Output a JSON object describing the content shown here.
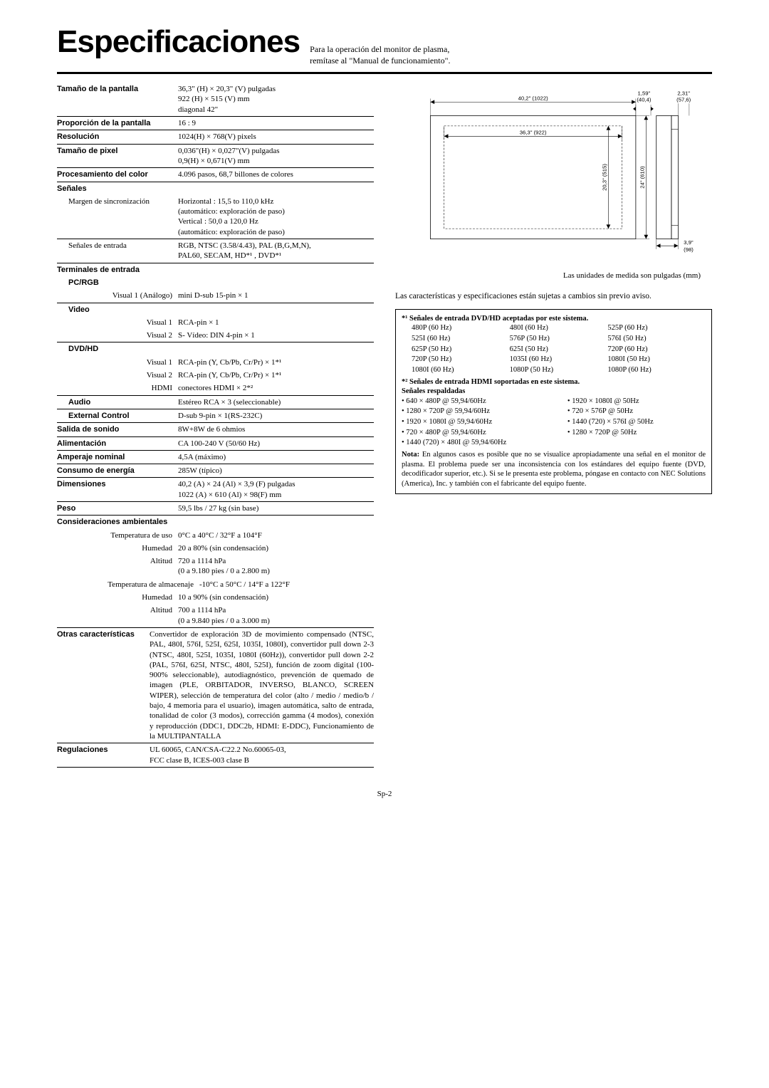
{
  "header": {
    "title": "Especificaciones",
    "subtitle_line1": "Para la operación del monitor de plasma,",
    "subtitle_line2": "remítase al \"Manual de funcionamiento\"."
  },
  "specs": {
    "screen_size": {
      "label": "Tamaño de la pantalla",
      "val": "36,3\" (H) × 20,3\" (V) pulgadas\n922 (H) × 515 (V) mm\ndiagonal 42\""
    },
    "aspect": {
      "label": "Proporción de la pantalla",
      "val": "16 : 9"
    },
    "resolution": {
      "label": "Resolución",
      "val": "1024(H) × 768(V) pixels"
    },
    "pixel_size": {
      "label": "Tamaño de pixel",
      "val": "0,036\"(H) × 0,027\"(V) pulgadas\n0,9(H) × 0,671(V) mm"
    },
    "color_proc": {
      "label": "Procesamiento del color",
      "val": "4.096 pasos, 68,7 billones de colores"
    },
    "signals": {
      "label": "Señales"
    },
    "sync_range": {
      "label": "Margen de sincronización",
      "val": "Horizontal : 15,5 to 110,0 kHz\n(automático: exploración de paso)\nVertical : 50,0 a 120,0 Hz\n(automático: exploración de paso)"
    },
    "input_sig": {
      "label": "Señales de entrada",
      "val": "RGB, NTSC (3.58/4.43), PAL (B,G,M,N),\nPAL60, SECAM, HD*¹ , DVD*¹"
    },
    "terminals": {
      "label": "Terminales de entrada"
    },
    "pcrgb": {
      "label": "PC/RGB"
    },
    "visual1_analog": {
      "label": "Visual 1 (Análogo)",
      "val": "mini D-sub 15-pin × 1"
    },
    "video": {
      "label": "Video"
    },
    "v_visual1": {
      "label": "Visual 1",
      "val": "RCA-pin × 1"
    },
    "v_visual2": {
      "label": "Visual 2",
      "val": "S- Vídeo: DIN 4-pin × 1"
    },
    "dvdhd": {
      "label": "DVD/HD"
    },
    "d_visual1": {
      "label": "Visual 1",
      "val": "RCA-pin (Y, Cb/Pb, Cr/Pr) × 1*¹"
    },
    "d_visual2": {
      "label": "Visual 2",
      "val": "RCA-pin (Y, Cb/Pb, Cr/Pr) × 1*¹"
    },
    "d_hdmi": {
      "label": "HDMI",
      "val": "conectores HDMI × 2*²"
    },
    "audio": {
      "label": "Audio",
      "val": "Estéreo RCA × 3 (seleccionable)"
    },
    "ext_ctrl": {
      "label": "External Control",
      "val": "D-sub 9-pin × 1(RS-232C)"
    },
    "sound_out": {
      "label": "Salida de sonido",
      "val": "8W+8W de 6 ohmios"
    },
    "power": {
      "label": "Alimentación",
      "val": "CA 100-240 V (50/60 Hz)"
    },
    "current": {
      "label": "Amperaje nominal",
      "val": "4,5A (máximo)"
    },
    "consumption": {
      "label": "Consumo de energía",
      "val": "285W  (típico)"
    },
    "dimensions": {
      "label": "Dimensiones",
      "val": "40,2 (A) × 24 (Al) × 3,9 (F) pulgadas\n1022 (A) × 610 (Al) × 98(F) mm"
    },
    "weight": {
      "label": "Peso",
      "val": "59,5 lbs / 27 kg (sin base)"
    },
    "env": {
      "label": "Consideraciones ambientales"
    },
    "op_temp": {
      "label": "Temperatura de uso",
      "val": "0°C a 40°C / 32°F a 104°F"
    },
    "op_hum": {
      "label": "Humedad",
      "val": "20 a 80% (sin condensación)"
    },
    "op_alt": {
      "label": "Altitud",
      "val": "720 a 1114 hPa\n(0 a 9.180 pies / 0 a 2.800 m)"
    },
    "st_temp": {
      "label": "Temperatura de almacenaje",
      "val": "-10°C a 50°C / 14°F a 122°F"
    },
    "st_hum": {
      "label": "Humedad",
      "val": "10 a 90% (sin condensación)"
    },
    "st_alt": {
      "label": "Altitud",
      "val": "700 a 1114 hPa\n(0 a 9.840 pies  / 0 a 3.000 m)"
    },
    "other": {
      "label": "Otras características",
      "val": "Convertidor de exploración 3D de movimiento compensado (NTSC, PAL, 480I, 576I, 525I, 625I, 1035I, 1080I), convertidor pull down 2-3 (NTSC, 480I, 525I, 1035I, 1080I (60Hz)), convertidor pull down 2-2 (PAL, 576I, 625I, NTSC, 480I, 525I), función de zoom digital (100-900% seleccionable), autodiagnóstico, prevención de quemado de imagen (PLE, ORBITADOR, INVERSO, BLANCO, SCREEN WIPER), selección de temperatura del color (alto / medio / medio/b / bajo, 4 memoria para el usuario), imagen automática, salto de entrada, tonalidad de color (3 modos), corrección gamma (4 modos), conexión y reproducción (DDC1, DDC2b, HDMI: E-DDC), Funcionamiento de la MULTIPANTALLA"
    },
    "regulations": {
      "label": "Regulaciones",
      "val": "UL 60065, CAN/CSA-C22.2 No.60065-03,\nFCC clase B, ICES-003 clase B"
    }
  },
  "diagram": {
    "w_total": "40,2\" (1022)",
    "w_screen": "36,3\" (922)",
    "h_screen": "20,3\" (515)",
    "h_total": "24\" (610)",
    "top1": "1,59\"",
    "top2": "(40,4)",
    "side1": "2,31\"",
    "side2": "(57,6)",
    "depth1": "3,9\"",
    "depth2": "(98)",
    "caption": "Las unidades de medida son pulgadas (mm)"
  },
  "note_paragraph": "Las características y especificaciones están sujetas a cambios sin previo aviso.",
  "signals_box": {
    "head1": "*¹ Señales de entrada DVD/HD aceptadas por este sistema.",
    "rows": [
      [
        "480P (60 Hz)",
        "480I (60 Hz)",
        "525P (60 Hz)"
      ],
      [
        "525I (60 Hz)",
        "576P (50 Hz)",
        "576I (50 Hz)"
      ],
      [
        "625P (50 Hz)",
        "625I (50 Hz)",
        "720P (60 Hz)"
      ],
      [
        "720P (50 Hz)",
        "1035I (60 Hz)",
        "1080I (50 Hz)"
      ],
      [
        "1080I (60 Hz)",
        "1080P (50 Hz)",
        "1080P (60 Hz)"
      ]
    ],
    "head2": "*² Señales de entrada HDMI soportadas en este sistema.",
    "head3": "Señales respaldadas",
    "hdmi_left": [
      "• 640 × 480P @ 59,94/60Hz",
      "• 1280 × 720P @ 59,94/60Hz",
      "• 1920 × 1080I @ 59,94/60Hz",
      "• 720 × 480P @ 59,94/60Hz",
      "• 1440 (720) × 480I @ 59,94/60Hz"
    ],
    "hdmi_right": [
      "• 1920 × 1080I @ 50Hz",
      "• 720 × 576P @ 50Hz",
      "• 1440 (720) × 576I @ 50Hz",
      "• 1280 × 720P @ 50Hz",
      ""
    ],
    "note": "Nota: En algunos casos es posible que no se visualice apropiadamente una señal en el monitor de plasma. El problema puede ser una inconsistencia con los estándares del equipo fuente (DVD, decodificador superior, etc.). Si se le presenta este problema, póngase en contacto con NEC Solutions (America), Inc. y también con el fabricante del equipo fuente."
  },
  "pagenum": "Sp-2"
}
